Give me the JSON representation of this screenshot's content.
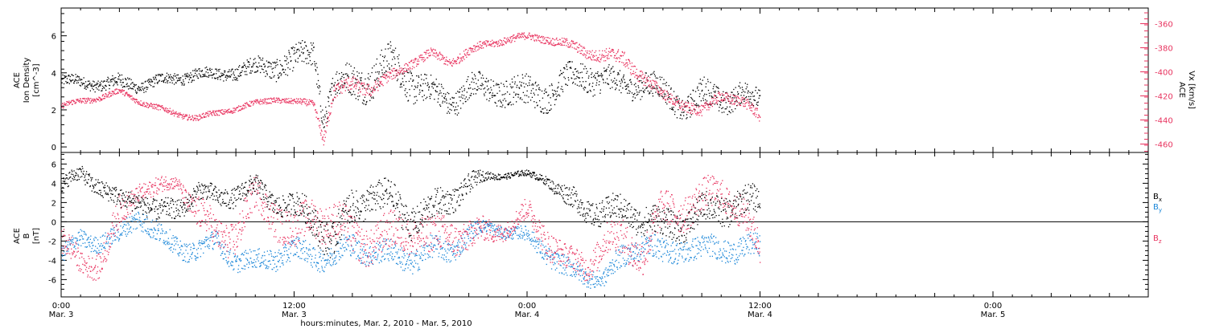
{
  "figure": {
    "xlabel": "hours:minutes, Mar.  2, 2010 - Mar.  5, 2010",
    "x_ticks": [
      {
        "time": "Mar. 3 00:00",
        "label1": "0:00",
        "label2": "Mar. 3"
      },
      {
        "time": "Mar. 3 12:00",
        "label1": "12:00",
        "label2": "Mar. 3"
      },
      {
        "time": "Mar. 4 00:00",
        "label1": "0:00",
        "label2": "Mar. 4"
      },
      {
        "time": "Mar. 4 12:00",
        "label1": "12:00",
        "label2": "Mar. 4"
      },
      {
        "time": "Mar. 5 00:00",
        "label1": "0:00",
        "label2": "Mar. 5"
      }
    ],
    "xlim": [
      "Mar. 3 00:00",
      "Mar. 5 08:00"
    ],
    "data_end": "Mar. 4 12:00"
  },
  "chart_data": [
    {
      "type": "scatter",
      "panel": "density-speed",
      "ylabel_lines": [
        "ACE",
        "Ion Density",
        "[cm^-3]"
      ],
      "ylim": [
        -0.3,
        7.5
      ],
      "yticks": [
        0,
        2,
        4,
        6
      ],
      "y2label_lines": [
        "ACE",
        "Vx [km/s]"
      ],
      "y2lim": [
        -467,
        -347
      ],
      "y2ticks": [
        -460,
        -440,
        -420,
        -400,
        -380,
        -360
      ],
      "colors": {
        "density": "#000000",
        "vx": "#e8335f"
      },
      "series": [
        {
          "axis": "left",
          "color": "#000000",
          "x": [
            "Mar. 3 00:00",
            "Mar. 3 01:00",
            "Mar. 3 02:00",
            "Mar. 3 03:00",
            "Mar. 3 04:00",
            "Mar. 3 05:00",
            "Mar. 3 06:00",
            "Mar. 3 07:00",
            "Mar. 3 08:00",
            "Mar. 3 09:00",
            "Mar. 3 10:00",
            "Mar. 3 11:00",
            "Mar. 3 12:00",
            "Mar. 3 13:00",
            "Mar. 3 13:30",
            "Mar. 3 14:00",
            "Mar. 3 15:00",
            "Mar. 3 16:00",
            "Mar. 3 17:00",
            "Mar. 3 18:00",
            "Mar. 3 19:00",
            "Mar. 3 20:00",
            "Mar. 3 21:00",
            "Mar. 3 22:00",
            "Mar. 3 23:00",
            "Mar. 4 00:00",
            "Mar. 4 01:00",
            "Mar. 4 02:00",
            "Mar. 4 03:00",
            "Mar. 4 04:00",
            "Mar. 4 05:00",
            "Mar. 4 06:00",
            "Mar. 4 07:00",
            "Mar. 4 08:00",
            "Mar. 4 09:00",
            "Mar. 4 10:00",
            "Mar. 4 11:00",
            "Mar. 4 12:00"
          ],
          "y": [
            3.6,
            3.5,
            3.4,
            3.5,
            3.3,
            3.6,
            3.7,
            4.0,
            3.9,
            4.1,
            4.3,
            4.4,
            4.6,
            5.2,
            1.5,
            3.3,
            3.5,
            3.8,
            4.5,
            3.6,
            3.0,
            2.4,
            3.3,
            3.0,
            3.2,
            2.8,
            2.9,
            3.6,
            3.9,
            3.7,
            3.2,
            3.6,
            2.9,
            2.2,
            2.8,
            2.6,
            2.9,
            2.4
          ],
          "spread": [
            0.4,
            0.4,
            0.4,
            0.5,
            0.4,
            0.4,
            0.4,
            0.4,
            0.4,
            0.5,
            0.6,
            0.8,
            0.9,
            0.9,
            0.8,
            1.0,
            1.2,
            1.3,
            1.2,
            1.2,
            0.9,
            0.9,
            0.9,
            0.9,
            1.0,
            1.1,
            1.0,
            0.9,
            1.0,
            0.9,
            0.8,
            0.9,
            0.9,
            0.8,
            1.0,
            0.9,
            0.8,
            0.8
          ]
        },
        {
          "axis": "right",
          "color": "#e8335f",
          "x": [
            "Mar. 3 00:00",
            "Mar. 3 01:00",
            "Mar. 3 02:00",
            "Mar. 3 03:00",
            "Mar. 3 04:00",
            "Mar. 3 05:00",
            "Mar. 3 06:00",
            "Mar. 3 07:00",
            "Mar. 3 08:00",
            "Mar. 3 09:00",
            "Mar. 3 10:00",
            "Mar. 3 11:00",
            "Mar. 3 12:00",
            "Mar. 3 13:00",
            "Mar. 3 13:30",
            "Mar. 3 14:00",
            "Mar. 3 15:00",
            "Mar. 3 16:00",
            "Mar. 3 17:00",
            "Mar. 3 18:00",
            "Mar. 3 19:00",
            "Mar. 3 20:00",
            "Mar. 3 21:00",
            "Mar. 3 22:00",
            "Mar. 3 23:00",
            "Mar. 4 00:00",
            "Mar. 4 01:00",
            "Mar. 4 02:00",
            "Mar. 4 03:00",
            "Mar. 4 04:00",
            "Mar. 4 05:00",
            "Mar. 4 06:00",
            "Mar. 4 07:00",
            "Mar. 4 08:00",
            "Mar. 4 09:00",
            "Mar. 4 10:00",
            "Mar. 4 11:00",
            "Mar. 4 12:00"
          ],
          "y": [
            -428,
            -424,
            -421,
            -416,
            -424,
            -430,
            -435,
            -438,
            -434,
            -430,
            -426,
            -422,
            -425,
            -426,
            -455,
            -418,
            -410,
            -413,
            -404,
            -392,
            -385,
            -392,
            -382,
            -377,
            -372,
            -371,
            -372,
            -377,
            -383,
            -386,
            -390,
            -404,
            -420,
            -426,
            -434,
            -418,
            -424,
            -438
          ],
          "spread": [
            3,
            3,
            3,
            3,
            3,
            3,
            3,
            3,
            3,
            3,
            3,
            3,
            3,
            4,
            6,
            8,
            8,
            7,
            6,
            5,
            5,
            5,
            5,
            4,
            4,
            4,
            4,
            5,
            6,
            7,
            8,
            7,
            6,
            6,
            6,
            6,
            6,
            6
          ]
        }
      ]
    },
    {
      "type": "scatter",
      "panel": "magnetic-field",
      "ylabel_lines": [
        "ACE",
        "B",
        "[nT]"
      ],
      "ylim": [
        -7.8,
        7.2
      ],
      "yticks": [
        -6,
        -4,
        -2,
        0,
        2,
        4,
        6
      ],
      "zero_line": true,
      "legend": [
        {
          "name": "Bx",
          "base": "B",
          "sub": "x",
          "color": "#000000"
        },
        {
          "name": "By",
          "base": "B",
          "sub": "y",
          "color": "#1a86d8"
        },
        {
          "name": "Bz",
          "base": "B",
          "sub": "z",
          "color": "#e8335f"
        }
      ],
      "series": [
        {
          "name": "Bx",
          "color": "#000000",
          "x": [
            "Mar. 3 00:00",
            "Mar. 3 01:00",
            "Mar. 3 02:00",
            "Mar. 3 03:00",
            "Mar. 3 04:00",
            "Mar. 3 05:00",
            "Mar. 3 06:00",
            "Mar. 3 07:00",
            "Mar. 3 08:00",
            "Mar. 3 09:00",
            "Mar. 3 10:00",
            "Mar. 3 11:00",
            "Mar. 3 12:00",
            "Mar. 3 13:00",
            "Mar. 3 14:00",
            "Mar. 3 15:00",
            "Mar. 3 16:00",
            "Mar. 3 17:00",
            "Mar. 3 18:00",
            "Mar. 3 19:00",
            "Mar. 3 20:00",
            "Mar. 3 21:00",
            "Mar. 3 22:00",
            "Mar. 3 23:00",
            "Mar. 4 00:00",
            "Mar. 4 01:00",
            "Mar. 4 02:00",
            "Mar. 4 03:00",
            "Mar. 4 04:00",
            "Mar. 4 05:00",
            "Mar. 4 06:00",
            "Mar. 4 07:00",
            "Mar. 4 08:00",
            "Mar. 4 09:00",
            "Mar. 4 10:00",
            "Mar. 4 11:00",
            "Mar. 4 12:00"
          ],
          "y": [
            3.8,
            5.0,
            3.8,
            2.0,
            2.6,
            0.8,
            1.5,
            3.2,
            2.5,
            3.0,
            3.5,
            2.2,
            1.5,
            0.5,
            -2.0,
            1.5,
            3.0,
            2.0,
            0.5,
            1.0,
            2.5,
            4.0,
            4.8,
            4.9,
            5.0,
            4.5,
            2.5,
            1.5,
            1.0,
            1.2,
            0.5,
            -0.5,
            0.0,
            1.0,
            1.5,
            2.0,
            2.0
          ],
          "spread": [
            1.0,
            1.0,
            1.3,
            1.3,
            1.4,
            1.4,
            1.4,
            1.2,
            1.3,
            1.4,
            1.4,
            1.5,
            1.6,
            2.2,
            2.5,
            2.2,
            2.2,
            2.2,
            2.2,
            2.0,
            1.8,
            1.4,
            0.5,
            0.4,
            0.4,
            0.6,
            1.4,
            1.6,
            1.8,
            1.8,
            2.0,
            2.0,
            2.0,
            2.0,
            2.0,
            2.0,
            1.8
          ]
        },
        {
          "name": "By",
          "color": "#1a86d8",
          "x": [
            "Mar. 3 00:00",
            "Mar. 3 01:00",
            "Mar. 3 02:00",
            "Mar. 3 03:00",
            "Mar. 3 04:00",
            "Mar. 3 05:00",
            "Mar. 3 06:00",
            "Mar. 3 07:00",
            "Mar. 3 08:00",
            "Mar. 3 09:00",
            "Mar. 3 10:00",
            "Mar. 3 11:00",
            "Mar. 3 12:00",
            "Mar. 3 13:00",
            "Mar. 3 14:00",
            "Mar. 3 15:00",
            "Mar. 3 16:00",
            "Mar. 3 17:00",
            "Mar. 3 18:00",
            "Mar. 3 19:00",
            "Mar. 3 20:00",
            "Mar. 3 21:00",
            "Mar. 3 22:00",
            "Mar. 3 23:00",
            "Mar. 4 00:00",
            "Mar. 4 01:00",
            "Mar. 4 02:00",
            "Mar. 4 03:00",
            "Mar. 4 04:00",
            "Mar. 4 05:00",
            "Mar. 4 06:00",
            "Mar. 4 07:00",
            "Mar. 4 08:00",
            "Mar. 4 09:00",
            "Mar. 4 10:00",
            "Mar. 4 11:00",
            "Mar. 4 12:00"
          ],
          "y": [
            -3.5,
            -1.8,
            -2.0,
            -1.5,
            1.0,
            -1.5,
            -2.5,
            -3.0,
            -2.0,
            -4.0,
            -4.2,
            -3.5,
            -3.0,
            -3.5,
            -3.5,
            -2.5,
            -3.0,
            -3.5,
            -3.8,
            -3.0,
            -3.0,
            -1.2,
            -0.5,
            -1.0,
            -1.5,
            -3.0,
            -5.0,
            -5.5,
            -5.8,
            -3.5,
            -2.0,
            -3.5,
            -2.5,
            -3.0,
            -2.5,
            -3.0,
            -2.5
          ],
          "spread": [
            1.2,
            1.2,
            1.2,
            1.2,
            1.5,
            1.5,
            1.3,
            1.3,
            1.3,
            1.3,
            1.3,
            1.5,
            1.5,
            1.5,
            1.6,
            1.6,
            1.6,
            1.6,
            1.6,
            1.6,
            1.5,
            1.2,
            0.8,
            0.8,
            1.0,
            1.4,
            1.4,
            1.2,
            1.2,
            1.6,
            1.6,
            1.6,
            1.6,
            1.6,
            1.6,
            1.6,
            1.5
          ]
        },
        {
          "name": "Bz",
          "color": "#e8335f",
          "x": [
            "Mar. 3 00:00",
            "Mar. 3 01:00",
            "Mar. 3 02:00",
            "Mar. 3 03:00",
            "Mar. 3 04:00",
            "Mar. 3 05:00",
            "Mar. 3 06:00",
            "Mar. 3 07:00",
            "Mar. 3 08:00",
            "Mar. 3 09:00",
            "Mar. 3 10:00",
            "Mar. 3 11:00",
            "Mar. 3 12:00",
            "Mar. 3 13:00",
            "Mar. 3 14:00",
            "Mar. 3 15:00",
            "Mar. 3 16:00",
            "Mar. 3 17:00",
            "Mar. 3 18:00",
            "Mar. 3 19:00",
            "Mar. 3 20:00",
            "Mar. 3 21:00",
            "Mar. 3 22:00",
            "Mar. 3 23:00",
            "Mar. 4 00:00",
            "Mar. 4 01:00",
            "Mar. 4 02:00",
            "Mar. 4 03:00",
            "Mar. 4 04:00",
            "Mar. 4 05:00",
            "Mar. 4 06:00",
            "Mar. 4 07:00",
            "Mar. 4 08:00",
            "Mar. 4 09:00",
            "Mar. 4 10:00",
            "Mar. 4 11:00",
            "Mar. 4 12:00"
          ],
          "y": [
            -2.0,
            -4.5,
            -4.0,
            0.5,
            3.5,
            3.5,
            4.2,
            1.0,
            -1.5,
            -1.0,
            2.5,
            1.0,
            -1.5,
            1.0,
            0.0,
            -1.5,
            -2.0,
            -1.5,
            -0.5,
            -2.0,
            -1.0,
            -1.5,
            -1.0,
            -0.5,
            1.0,
            -1.5,
            -4.0,
            -4.5,
            -2.0,
            -2.0,
            -3.0,
            1.0,
            1.5,
            2.0,
            3.5,
            1.0,
            -3.0
          ],
          "spread": [
            2.0,
            1.5,
            1.8,
            2.2,
            1.2,
            1.2,
            0.8,
            2.2,
            2.2,
            2.5,
            2.2,
            2.5,
            2.5,
            2.6,
            2.6,
            2.6,
            2.6,
            2.6,
            2.6,
            2.6,
            2.5,
            2.0,
            1.6,
            1.2,
            1.5,
            2.2,
            1.6,
            1.8,
            2.2,
            2.5,
            2.6,
            2.5,
            2.4,
            2.4,
            2.0,
            2.2,
            2.2
          ]
        }
      ]
    }
  ]
}
